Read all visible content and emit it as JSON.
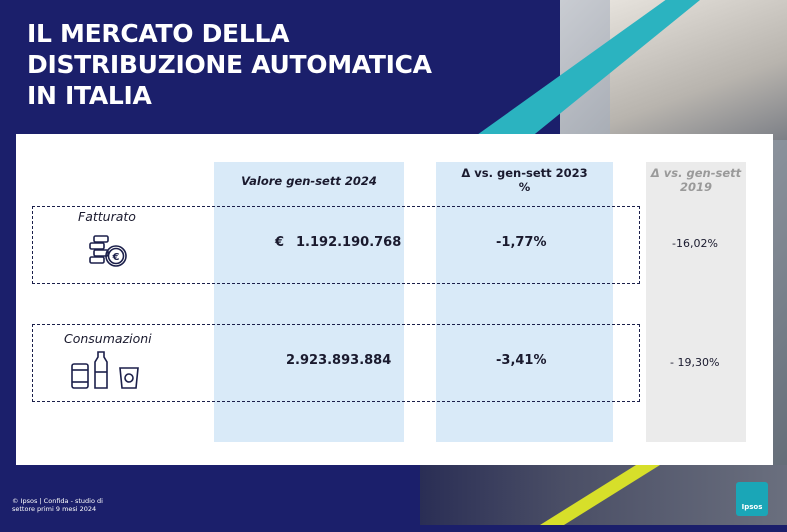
{
  "title_lines": [
    "IL MERCATO DELLA",
    "DISTRIBUZIONE AUTOMATICA",
    "IN ITALIA"
  ],
  "columns": {
    "col1": "Valore gen-sett 2024",
    "col2_line1": "Δ vs. gen-sett 2023",
    "col2_line2": "%",
    "col3_line1": "Δ vs. gen-sett",
    "col3_line2": "2019"
  },
  "rows": [
    {
      "label": "Fatturato",
      "icon": "coins-euro-icon",
      "currency": "€",
      "value": "1.192.190.768",
      "delta_2023": "-1,77%",
      "delta_2019": "-16,02%"
    },
    {
      "label": "Consumazioni",
      "icon": "drinks-icon",
      "currency": "",
      "value": "2.923.893.884",
      "delta_2023": "-3,41%",
      "delta_2019": "- 19,30%"
    }
  ],
  "footer": "© Ipsos | Confida - studio di settore primi 9 mesi 2024",
  "logo": "Ipsos",
  "colors": {
    "background": "#1b1f6b",
    "accent_teal": "#2bb3c0",
    "accent_yellow": "#d7df2a",
    "column_blue": "#d9eaf8",
    "column_grey": "#ebebeb"
  }
}
